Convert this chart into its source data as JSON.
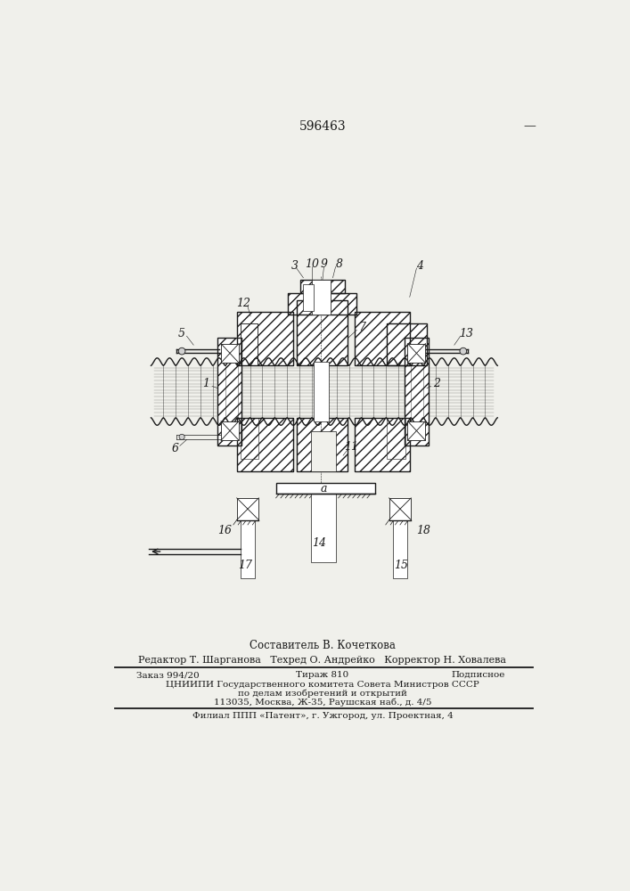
{
  "patent_number": "596463",
  "top_right_dash": "—",
  "bg_color": "#f0f0eb",
  "drawing_color": "#1a1a1a",
  "footer": {
    "composer": "Составитель В. Кочеткова",
    "editor": "Редактор Т. Шарганова",
    "techred": "Техред О. Андрейко",
    "corrector": "Корректор Н. Ховалева",
    "order": "Заказ 994/20",
    "circulation": "Тираж 810",
    "subscription": "Подписное",
    "org1": "ЦНИИПИ Государственного комитета Совета Министров СССР",
    "org2": "по делам изобретений и открытий",
    "address": "113035, Москва, Ж-35, Раушская наб., д. 4/5",
    "branch": "Филиал ППП «Патент», г. Ужгород, ул. Проектная, 4"
  }
}
